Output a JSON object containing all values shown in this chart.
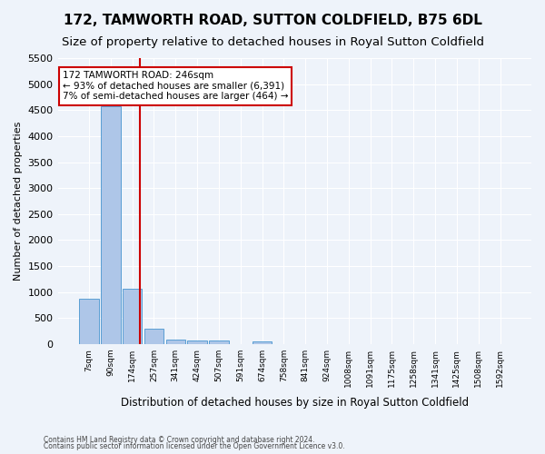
{
  "title": "172, TAMWORTH ROAD, SUTTON COLDFIELD, B75 6DL",
  "subtitle": "Size of property relative to detached houses in Royal Sutton Coldfield",
  "xlabel": "Distribution of detached houses by size in Royal Sutton Coldfield",
  "ylabel": "Number of detached properties",
  "footnote1": "Contains HM Land Registry data © Crown copyright and database right 2024.",
  "footnote2": "Contains public sector information licensed under the Open Government Licence v3.0.",
  "bin_labels": [
    "7sqm",
    "90sqm",
    "174sqm",
    "257sqm",
    "341sqm",
    "424sqm",
    "507sqm",
    "591sqm",
    "674sqm",
    "758sqm",
    "841sqm",
    "924sqm",
    "1008sqm",
    "1091sqm",
    "1175sqm",
    "1258sqm",
    "1341sqm",
    "1425sqm",
    "1508sqm",
    "1592sqm"
  ],
  "bar_values": [
    870,
    4570,
    1060,
    300,
    80,
    70,
    65,
    0,
    55,
    0,
    0,
    0,
    0,
    0,
    0,
    0,
    0,
    0,
    0,
    0
  ],
  "bar_color": "#aec6e8",
  "bar_edge_color": "#5a9fd4",
  "vline_x": 2.37,
  "vline_color": "#cc0000",
  "annotation_text": "172 TAMWORTH ROAD: 246sqm\n← 93% of detached houses are smaller (6,391)\n7% of semi-detached houses are larger (464) →",
  "annotation_box_color": "#cc0000",
  "ylim": [
    0,
    5500
  ],
  "yticks": [
    0,
    500,
    1000,
    1500,
    2000,
    2500,
    3000,
    3500,
    4000,
    4500,
    5000,
    5500
  ],
  "background_color": "#eef3fa",
  "grid_color": "#ffffff",
  "title_fontsize": 11,
  "subtitle_fontsize": 9.5
}
